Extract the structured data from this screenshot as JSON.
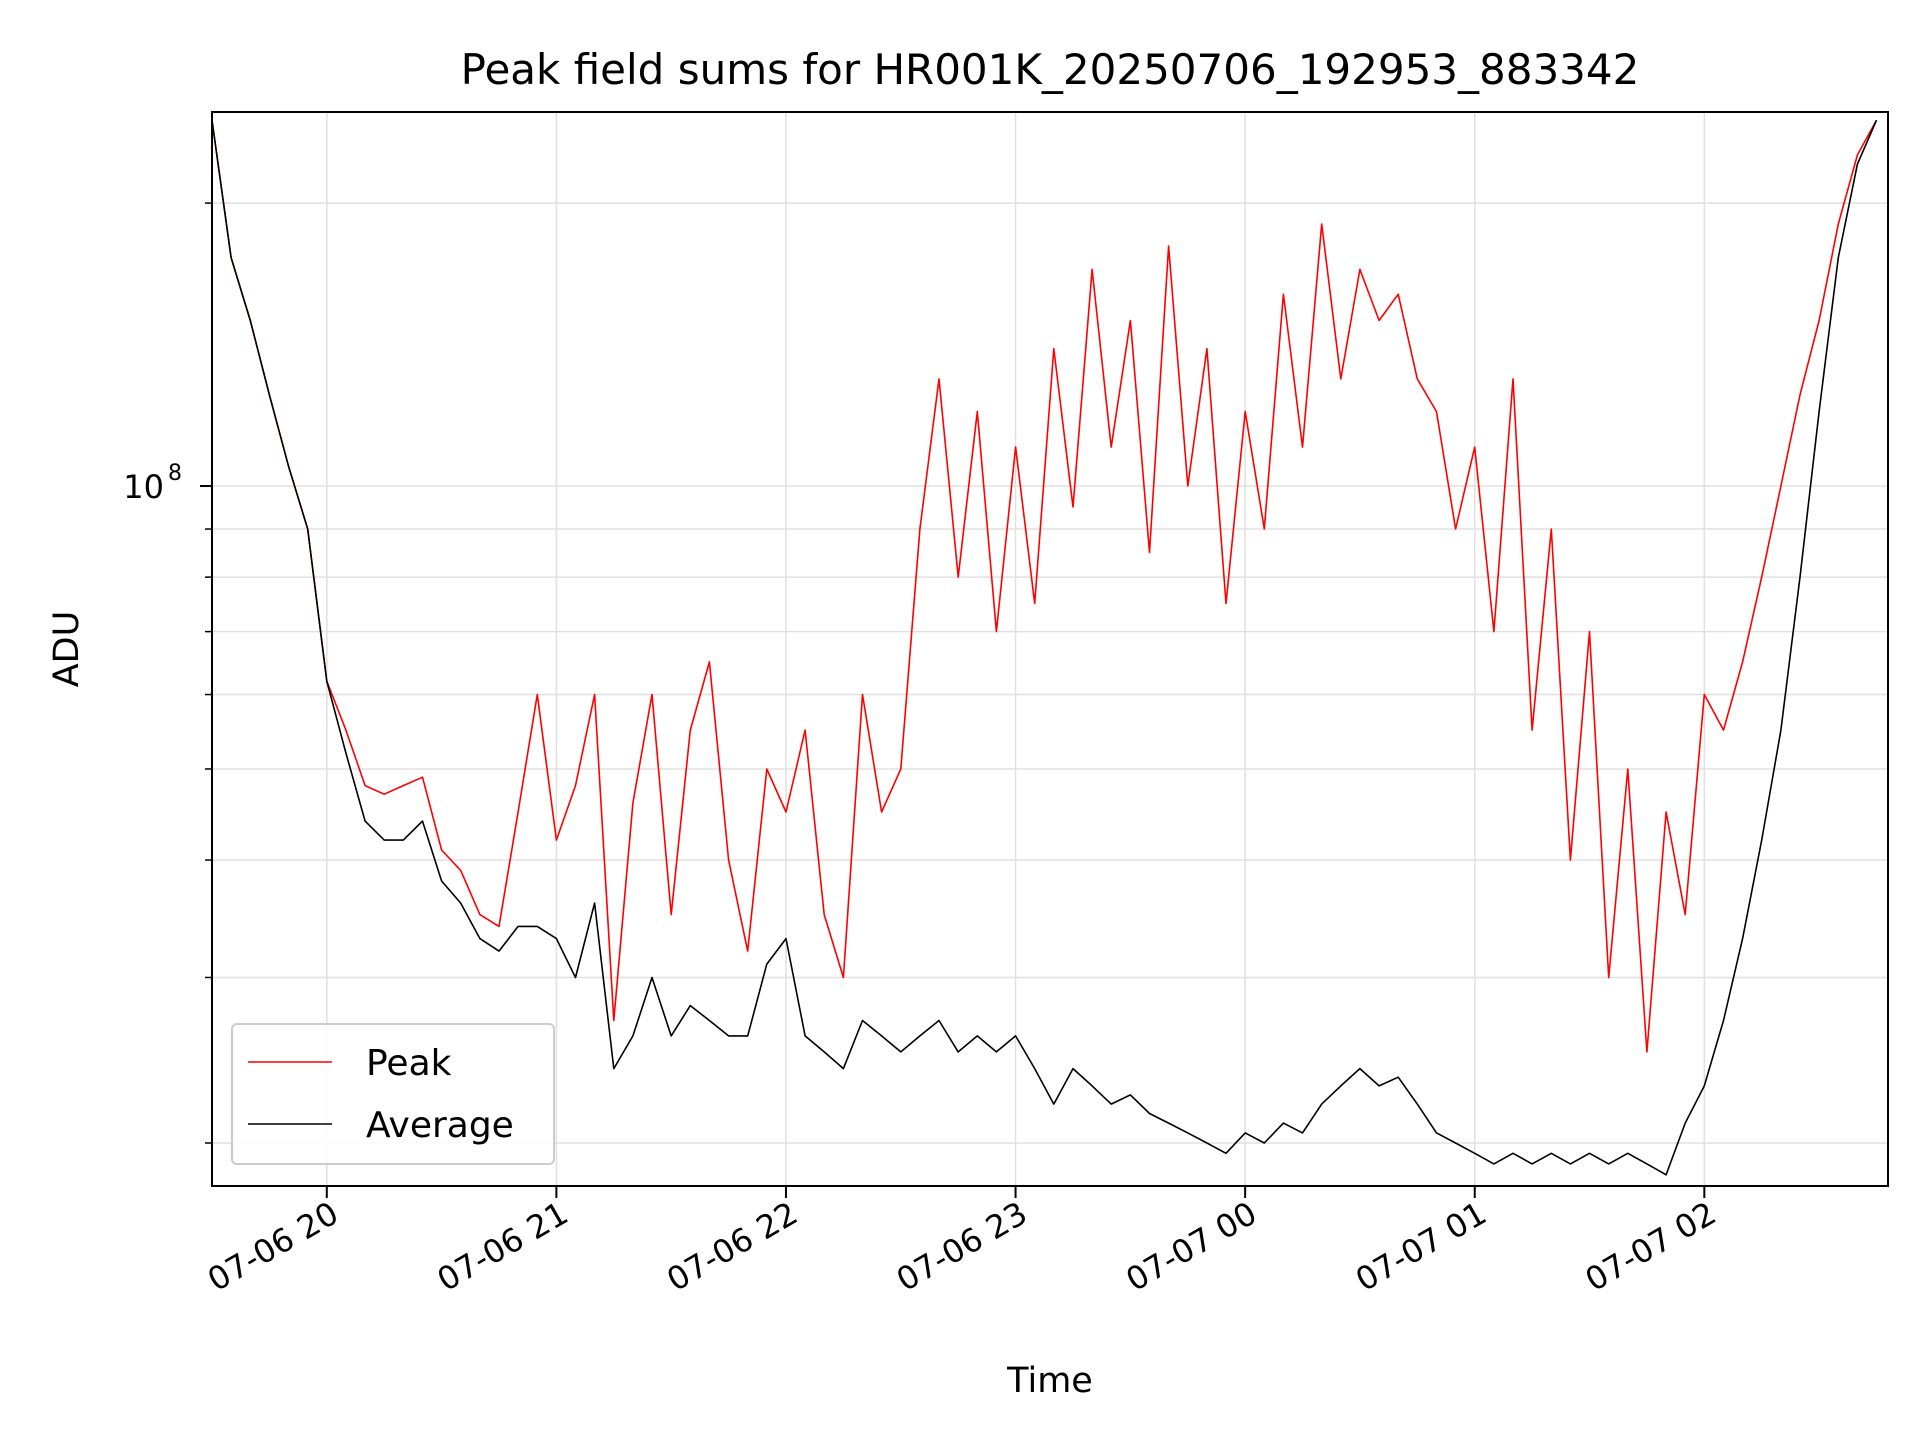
{
  "chart_data": {
    "type": "line",
    "title": "Peak field sums for HR001K_20250706_192953_883342",
    "xlabel": "Time",
    "ylabel": "ADU",
    "y_scale": "log",
    "ylim": [
      18000000,
      250000000
    ],
    "xlim": [
      "2025-07-06 19:30",
      "2025-07-07 02:48"
    ],
    "x_ticks": [
      {
        "value": "2025-07-06 20:00",
        "label": "07-06 20"
      },
      {
        "value": "2025-07-06 21:00",
        "label": "07-06 21"
      },
      {
        "value": "2025-07-06 22:00",
        "label": "07-06 22"
      },
      {
        "value": "2025-07-06 23:00",
        "label": "07-06 23"
      },
      {
        "value": "2025-07-07 00:00",
        "label": "07-07 00"
      },
      {
        "value": "2025-07-07 01:00",
        "label": "07-07 01"
      },
      {
        "value": "2025-07-07 02:00",
        "label": "07-07 02"
      }
    ],
    "y_major_tick": {
      "value": 100000000,
      "base": "10",
      "exponent": "8"
    },
    "y_minor_ticks": [
      20000000,
      30000000,
      40000000,
      50000000,
      60000000,
      70000000,
      80000000,
      90000000,
      200000000
    ],
    "grid": true,
    "legend_position": "lower-left",
    "series": [
      {
        "name": "Peak",
        "color": "#ff0000",
        "points": [
          [
            "2025-07-06 19:30",
            245000000
          ],
          [
            "2025-07-06 19:35",
            175000000
          ],
          [
            "2025-07-06 19:40",
            150000000
          ],
          [
            "2025-07-06 19:45",
            125000000
          ],
          [
            "2025-07-06 19:50",
            105000000
          ],
          [
            "2025-07-06 19:55",
            90000000
          ],
          [
            "2025-07-06 20:00",
            62000000
          ],
          [
            "2025-07-06 20:05",
            55000000
          ],
          [
            "2025-07-06 20:10",
            48000000
          ],
          [
            "2025-07-06 20:15",
            47000000
          ],
          [
            "2025-07-06 20:20",
            48000000
          ],
          [
            "2025-07-06 20:25",
            49000000
          ],
          [
            "2025-07-06 20:30",
            41000000
          ],
          [
            "2025-07-06 20:35",
            39000000
          ],
          [
            "2025-07-06 20:40",
            35000000
          ],
          [
            "2025-07-06 20:45",
            34000000
          ],
          [
            "2025-07-06 20:50",
            45000000
          ],
          [
            "2025-07-06 20:55",
            60000000
          ],
          [
            "2025-07-06 21:00",
            42000000
          ],
          [
            "2025-07-06 21:05",
            48000000
          ],
          [
            "2025-07-06 21:10",
            60000000
          ],
          [
            "2025-07-06 21:15",
            27000000
          ],
          [
            "2025-07-06 21:20",
            46000000
          ],
          [
            "2025-07-06 21:25",
            60000000
          ],
          [
            "2025-07-06 21:30",
            35000000
          ],
          [
            "2025-07-06 21:35",
            55000000
          ],
          [
            "2025-07-06 21:40",
            65000000
          ],
          [
            "2025-07-06 21:45",
            40000000
          ],
          [
            "2025-07-06 21:50",
            32000000
          ],
          [
            "2025-07-06 21:55",
            50000000
          ],
          [
            "2025-07-06 22:00",
            45000000
          ],
          [
            "2025-07-06 22:05",
            55000000
          ],
          [
            "2025-07-06 22:10",
            35000000
          ],
          [
            "2025-07-06 22:15",
            30000000
          ],
          [
            "2025-07-06 22:20",
            60000000
          ],
          [
            "2025-07-06 22:25",
            45000000
          ],
          [
            "2025-07-06 22:30",
            50000000
          ],
          [
            "2025-07-06 22:35",
            90000000
          ],
          [
            "2025-07-06 22:40",
            130000000
          ],
          [
            "2025-07-06 22:45",
            80000000
          ],
          [
            "2025-07-06 22:50",
            120000000
          ],
          [
            "2025-07-06 22:55",
            70000000
          ],
          [
            "2025-07-06 23:00",
            110000000
          ],
          [
            "2025-07-06 23:05",
            75000000
          ],
          [
            "2025-07-06 23:10",
            140000000
          ],
          [
            "2025-07-06 23:15",
            95000000
          ],
          [
            "2025-07-06 23:20",
            170000000
          ],
          [
            "2025-07-06 23:25",
            110000000
          ],
          [
            "2025-07-06 23:30",
            150000000
          ],
          [
            "2025-07-06 23:35",
            85000000
          ],
          [
            "2025-07-06 23:40",
            180000000
          ],
          [
            "2025-07-06 23:45",
            100000000
          ],
          [
            "2025-07-06 23:50",
            140000000
          ],
          [
            "2025-07-06 23:55",
            75000000
          ],
          [
            "2025-07-07 00:00",
            120000000
          ],
          [
            "2025-07-07 00:05",
            90000000
          ],
          [
            "2025-07-07 00:10",
            160000000
          ],
          [
            "2025-07-07 00:15",
            110000000
          ],
          [
            "2025-07-07 00:20",
            190000000
          ],
          [
            "2025-07-07 00:25",
            130000000
          ],
          [
            "2025-07-07 00:30",
            170000000
          ],
          [
            "2025-07-07 00:35",
            150000000
          ],
          [
            "2025-07-07 00:40",
            160000000
          ],
          [
            "2025-07-07 00:45",
            130000000
          ],
          [
            "2025-07-07 00:50",
            120000000
          ],
          [
            "2025-07-07 00:55",
            90000000
          ],
          [
            "2025-07-07 01:00",
            110000000
          ],
          [
            "2025-07-07 01:05",
            70000000
          ],
          [
            "2025-07-07 01:10",
            130000000
          ],
          [
            "2025-07-07 01:15",
            55000000
          ],
          [
            "2025-07-07 01:20",
            90000000
          ],
          [
            "2025-07-07 01:25",
            40000000
          ],
          [
            "2025-07-07 01:30",
            70000000
          ],
          [
            "2025-07-07 01:35",
            30000000
          ],
          [
            "2025-07-07 01:40",
            50000000
          ],
          [
            "2025-07-07 01:45",
            25000000
          ],
          [
            "2025-07-07 01:50",
            45000000
          ],
          [
            "2025-07-07 01:55",
            35000000
          ],
          [
            "2025-07-07 02:00",
            60000000
          ],
          [
            "2025-07-07 02:05",
            55000000
          ],
          [
            "2025-07-07 02:10",
            65000000
          ],
          [
            "2025-07-07 02:15",
            80000000
          ],
          [
            "2025-07-07 02:20",
            100000000
          ],
          [
            "2025-07-07 02:25",
            125000000
          ],
          [
            "2025-07-07 02:30",
            150000000
          ],
          [
            "2025-07-07 02:35",
            190000000
          ],
          [
            "2025-07-07 02:40",
            225000000
          ],
          [
            "2025-07-07 02:45",
            245000000
          ]
        ]
      },
      {
        "name": "Average",
        "color": "#000000",
        "points": [
          [
            "2025-07-06 19:30",
            245000000
          ],
          [
            "2025-07-06 19:35",
            175000000
          ],
          [
            "2025-07-06 19:40",
            150000000
          ],
          [
            "2025-07-06 19:45",
            125000000
          ],
          [
            "2025-07-06 19:50",
            105000000
          ],
          [
            "2025-07-06 19:55",
            90000000
          ],
          [
            "2025-07-06 20:00",
            62000000
          ],
          [
            "2025-07-06 20:05",
            52000000
          ],
          [
            "2025-07-06 20:10",
            44000000
          ],
          [
            "2025-07-06 20:15",
            42000000
          ],
          [
            "2025-07-06 20:20",
            42000000
          ],
          [
            "2025-07-06 20:25",
            44000000
          ],
          [
            "2025-07-06 20:30",
            38000000
          ],
          [
            "2025-07-06 20:35",
            36000000
          ],
          [
            "2025-07-06 20:40",
            33000000
          ],
          [
            "2025-07-06 20:45",
            32000000
          ],
          [
            "2025-07-06 20:50",
            34000000
          ],
          [
            "2025-07-06 20:55",
            34000000
          ],
          [
            "2025-07-06 21:00",
            33000000
          ],
          [
            "2025-07-06 21:05",
            30000000
          ],
          [
            "2025-07-06 21:10",
            36000000
          ],
          [
            "2025-07-06 21:15",
            24000000
          ],
          [
            "2025-07-06 21:20",
            26000000
          ],
          [
            "2025-07-06 21:25",
            30000000
          ],
          [
            "2025-07-06 21:30",
            26000000
          ],
          [
            "2025-07-06 21:35",
            28000000
          ],
          [
            "2025-07-06 21:40",
            27000000
          ],
          [
            "2025-07-06 21:45",
            26000000
          ],
          [
            "2025-07-06 21:50",
            26000000
          ],
          [
            "2025-07-06 21:55",
            31000000
          ],
          [
            "2025-07-06 22:00",
            33000000
          ],
          [
            "2025-07-06 22:05",
            26000000
          ],
          [
            "2025-07-06 22:10",
            25000000
          ],
          [
            "2025-07-06 22:15",
            24000000
          ],
          [
            "2025-07-06 22:20",
            27000000
          ],
          [
            "2025-07-06 22:25",
            26000000
          ],
          [
            "2025-07-06 22:30",
            25000000
          ],
          [
            "2025-07-06 22:35",
            26000000
          ],
          [
            "2025-07-06 22:40",
            27000000
          ],
          [
            "2025-07-06 22:45",
            25000000
          ],
          [
            "2025-07-06 22:50",
            26000000
          ],
          [
            "2025-07-06 22:55",
            25000000
          ],
          [
            "2025-07-06 23:00",
            26000000
          ],
          [
            "2025-07-06 23:05",
            24000000
          ],
          [
            "2025-07-06 23:10",
            22000000
          ],
          [
            "2025-07-06 23:15",
            24000000
          ],
          [
            "2025-07-06 23:20",
            23000000
          ],
          [
            "2025-07-06 23:25",
            22000000
          ],
          [
            "2025-07-06 23:30",
            22500000
          ],
          [
            "2025-07-06 23:35",
            21500000
          ],
          [
            "2025-07-06 23:40",
            21000000
          ],
          [
            "2025-07-06 23:45",
            20500000
          ],
          [
            "2025-07-06 23:50",
            20000000
          ],
          [
            "2025-07-06 23:55",
            19500000
          ],
          [
            "2025-07-07 00:00",
            20500000
          ],
          [
            "2025-07-07 00:05",
            20000000
          ],
          [
            "2025-07-07 00:10",
            21000000
          ],
          [
            "2025-07-07 00:15",
            20500000
          ],
          [
            "2025-07-07 00:20",
            22000000
          ],
          [
            "2025-07-07 00:25",
            23000000
          ],
          [
            "2025-07-07 00:30",
            24000000
          ],
          [
            "2025-07-07 00:35",
            23000000
          ],
          [
            "2025-07-07 00:40",
            23500000
          ],
          [
            "2025-07-07 00:45",
            22000000
          ],
          [
            "2025-07-07 00:50",
            20500000
          ],
          [
            "2025-07-07 00:55",
            20000000
          ],
          [
            "2025-07-07 01:00",
            19500000
          ],
          [
            "2025-07-07 01:05",
            19000000
          ],
          [
            "2025-07-07 01:10",
            19500000
          ],
          [
            "2025-07-07 01:15",
            19000000
          ],
          [
            "2025-07-07 01:20",
            19500000
          ],
          [
            "2025-07-07 01:25",
            19000000
          ],
          [
            "2025-07-07 01:30",
            19500000
          ],
          [
            "2025-07-07 01:35",
            19000000
          ],
          [
            "2025-07-07 01:40",
            19500000
          ],
          [
            "2025-07-07 01:45",
            19000000
          ],
          [
            "2025-07-07 01:50",
            18500000
          ],
          [
            "2025-07-07 01:55",
            21000000
          ],
          [
            "2025-07-07 02:00",
            23000000
          ],
          [
            "2025-07-07 02:05",
            27000000
          ],
          [
            "2025-07-07 02:10",
            33000000
          ],
          [
            "2025-07-07 02:15",
            42000000
          ],
          [
            "2025-07-07 02:20",
            55000000
          ],
          [
            "2025-07-07 02:25",
            80000000
          ],
          [
            "2025-07-07 02:30",
            120000000
          ],
          [
            "2025-07-07 02:35",
            175000000
          ],
          [
            "2025-07-07 02:40",
            220000000
          ],
          [
            "2025-07-07 02:45",
            245000000
          ]
        ]
      }
    ]
  }
}
